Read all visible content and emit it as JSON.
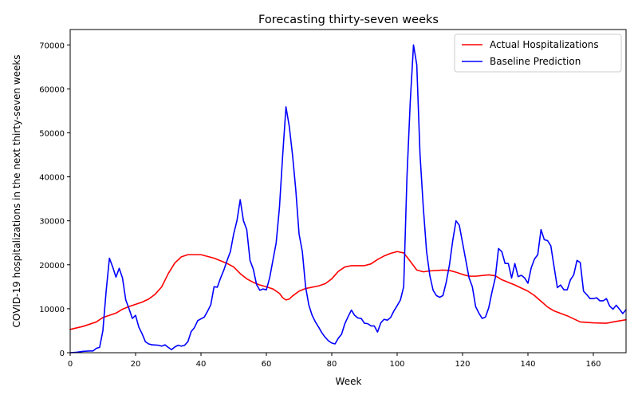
{
  "chart_data": {
    "type": "line",
    "title": "Forecasting thirty-seven weeks",
    "xlabel": "Week",
    "ylabel": "COVID-19 hospitalizations in the next thirty-seven weeks",
    "xlim": [
      0,
      170
    ],
    "ylim": [
      0,
      73500
    ],
    "x_ticks": [
      0,
      20,
      40,
      60,
      80,
      100,
      120,
      140,
      160
    ],
    "y_ticks": [
      0,
      10000,
      20000,
      30000,
      40000,
      50000,
      60000,
      70000
    ],
    "grid": false,
    "legend_position": "top-right",
    "series": [
      {
        "name": "Actual Hospitalizations",
        "color": "#ff0000",
        "points": [
          [
            0,
            5300
          ],
          [
            4,
            6000
          ],
          [
            8,
            7000
          ],
          [
            10,
            8000
          ],
          [
            12,
            8500
          ],
          [
            14,
            9000
          ],
          [
            16,
            9900
          ],
          [
            18,
            10500
          ],
          [
            20,
            11000
          ],
          [
            22,
            11500
          ],
          [
            24,
            12200
          ],
          [
            26,
            13300
          ],
          [
            28,
            15000
          ],
          [
            30,
            18000
          ],
          [
            32,
            20400
          ],
          [
            34,
            21800
          ],
          [
            36,
            22300
          ],
          [
            40,
            22300
          ],
          [
            44,
            21500
          ],
          [
            48,
            20300
          ],
          [
            50,
            19500
          ],
          [
            52,
            18000
          ],
          [
            54,
            16800
          ],
          [
            56,
            16000
          ],
          [
            58,
            15400
          ],
          [
            60,
            15000
          ],
          [
            62,
            14500
          ],
          [
            64,
            13500
          ],
          [
            65,
            12500
          ],
          [
            66,
            12000
          ],
          [
            67,
            12200
          ],
          [
            68,
            12900
          ],
          [
            70,
            14000
          ],
          [
            72,
            14600
          ],
          [
            76,
            15200
          ],
          [
            78,
            15700
          ],
          [
            80,
            16800
          ],
          [
            82,
            18500
          ],
          [
            84,
            19500
          ],
          [
            86,
            19800
          ],
          [
            90,
            19800
          ],
          [
            92,
            20200
          ],
          [
            94,
            21200
          ],
          [
            96,
            22000
          ],
          [
            98,
            22600
          ],
          [
            100,
            23000
          ],
          [
            102,
            22700
          ],
          [
            104,
            20800
          ],
          [
            106,
            18800
          ],
          [
            108,
            18400
          ],
          [
            110,
            18600
          ],
          [
            114,
            18800
          ],
          [
            116,
            18700
          ],
          [
            118,
            18300
          ],
          [
            120,
            17800
          ],
          [
            122,
            17400
          ],
          [
            124,
            17400
          ],
          [
            128,
            17700
          ],
          [
            130,
            17500
          ],
          [
            132,
            16600
          ],
          [
            134,
            16000
          ],
          [
            136,
            15400
          ],
          [
            140,
            14000
          ],
          [
            142,
            13000
          ],
          [
            144,
            11700
          ],
          [
            146,
            10400
          ],
          [
            148,
            9500
          ],
          [
            152,
            8400
          ],
          [
            154,
            7700
          ],
          [
            156,
            7000
          ],
          [
            160,
            6800
          ],
          [
            164,
            6700
          ],
          [
            166,
            7000
          ],
          [
            170,
            7500
          ]
        ]
      },
      {
        "name": "Baseline Prediction",
        "color": "#0000ff",
        "points": [
          [
            0,
            0
          ],
          [
            2,
            100
          ],
          [
            4,
            300
          ],
          [
            6,
            400
          ],
          [
            7,
            400
          ],
          [
            8,
            1000
          ],
          [
            9,
            1200
          ],
          [
            10,
            5000
          ],
          [
            11,
            14000
          ],
          [
            12,
            21500
          ],
          [
            13,
            19500
          ],
          [
            14,
            17200
          ],
          [
            15,
            19200
          ],
          [
            16,
            17000
          ],
          [
            17,
            12000
          ],
          [
            18,
            10000
          ],
          [
            19,
            7800
          ],
          [
            20,
            8500
          ],
          [
            21,
            5800
          ],
          [
            22,
            4300
          ],
          [
            23,
            2500
          ],
          [
            24,
            2000
          ],
          [
            25,
            1800
          ],
          [
            27,
            1700
          ],
          [
            28,
            1500
          ],
          [
            29,
            1800
          ],
          [
            30,
            1200
          ],
          [
            31,
            700
          ],
          [
            32,
            1300
          ],
          [
            33,
            1700
          ],
          [
            34,
            1500
          ],
          [
            35,
            1700
          ],
          [
            36,
            2500
          ],
          [
            37,
            4800
          ],
          [
            38,
            5700
          ],
          [
            39,
            7300
          ],
          [
            40,
            7700
          ],
          [
            41,
            8100
          ],
          [
            42,
            9400
          ],
          [
            43,
            10900
          ],
          [
            44,
            15000
          ],
          [
            45,
            14900
          ],
          [
            46,
            17000
          ],
          [
            47,
            18800
          ],
          [
            48,
            21000
          ],
          [
            49,
            23000
          ],
          [
            50,
            27000
          ],
          [
            51,
            30000
          ],
          [
            52,
            34800
          ],
          [
            53,
            30000
          ],
          [
            54,
            28000
          ],
          [
            55,
            21000
          ],
          [
            56,
            19000
          ],
          [
            57,
            15500
          ],
          [
            58,
            14200
          ],
          [
            59,
            14500
          ],
          [
            60,
            14300
          ],
          [
            61,
            17000
          ],
          [
            62,
            21000
          ],
          [
            63,
            25000
          ],
          [
            64,
            33000
          ],
          [
            65,
            45000
          ],
          [
            66,
            55900
          ],
          [
            67,
            51500
          ],
          [
            68,
            45000
          ],
          [
            69,
            37000
          ],
          [
            70,
            27000
          ],
          [
            71,
            23000
          ],
          [
            72,
            15000
          ],
          [
            73,
            10800
          ],
          [
            74,
            8500
          ],
          [
            75,
            7000
          ],
          [
            76,
            5800
          ],
          [
            77,
            4500
          ],
          [
            78,
            3500
          ],
          [
            79,
            2700
          ],
          [
            80,
            2200
          ],
          [
            81,
            2000
          ],
          [
            82,
            3300
          ],
          [
            83,
            4200
          ],
          [
            84,
            6600
          ],
          [
            85,
            8200
          ],
          [
            86,
            9700
          ],
          [
            87,
            8500
          ],
          [
            88,
            7900
          ],
          [
            89,
            7800
          ],
          [
            90,
            6700
          ],
          [
            91,
            6600
          ],
          [
            92,
            6100
          ],
          [
            93,
            6100
          ],
          [
            94,
            4700
          ],
          [
            95,
            6800
          ],
          [
            96,
            7600
          ],
          [
            97,
            7400
          ],
          [
            98,
            8000
          ],
          [
            99,
            9500
          ],
          [
            100,
            10700
          ],
          [
            101,
            12000
          ],
          [
            102,
            15000
          ],
          [
            103,
            40000
          ],
          [
            104,
            57000
          ],
          [
            105,
            70000
          ],
          [
            106,
            65500
          ],
          [
            107,
            45000
          ],
          [
            108,
            33000
          ],
          [
            109,
            23000
          ],
          [
            110,
            17500
          ],
          [
            111,
            14200
          ],
          [
            112,
            13000
          ],
          [
            113,
            12600
          ],
          [
            114,
            13000
          ],
          [
            115,
            16000
          ],
          [
            116,
            20000
          ],
          [
            117,
            25500
          ],
          [
            118,
            30000
          ],
          [
            119,
            29000
          ],
          [
            120,
            25000
          ],
          [
            121,
            21000
          ],
          [
            122,
            17000
          ],
          [
            123,
            15000
          ],
          [
            124,
            10500
          ],
          [
            125,
            9000
          ],
          [
            126,
            7800
          ],
          [
            127,
            8100
          ],
          [
            128,
            10200
          ],
          [
            129,
            13800
          ],
          [
            130,
            17000
          ],
          [
            131,
            23700
          ],
          [
            132,
            23000
          ],
          [
            133,
            20300
          ],
          [
            134,
            20300
          ],
          [
            135,
            17000
          ],
          [
            136,
            20300
          ],
          [
            137,
            17300
          ],
          [
            138,
            17600
          ],
          [
            139,
            17000
          ],
          [
            140,
            15800
          ],
          [
            141,
            19300
          ],
          [
            142,
            21300
          ],
          [
            143,
            22300
          ],
          [
            144,
            28000
          ],
          [
            145,
            25700
          ],
          [
            146,
            25500
          ],
          [
            147,
            24300
          ],
          [
            148,
            19500
          ],
          [
            149,
            14800
          ],
          [
            150,
            15400
          ],
          [
            151,
            14300
          ],
          [
            152,
            14300
          ],
          [
            153,
            16600
          ],
          [
            154,
            17700
          ],
          [
            155,
            21000
          ],
          [
            156,
            20500
          ],
          [
            157,
            14000
          ],
          [
            158,
            13200
          ],
          [
            159,
            12300
          ],
          [
            160,
            12300
          ],
          [
            161,
            12500
          ],
          [
            162,
            11800
          ],
          [
            163,
            11800
          ],
          [
            164,
            12300
          ],
          [
            165,
            10600
          ],
          [
            166,
            9900
          ],
          [
            167,
            10800
          ],
          [
            168,
            9900
          ],
          [
            169,
            8900
          ],
          [
            170,
            9800
          ]
        ]
      }
    ]
  }
}
